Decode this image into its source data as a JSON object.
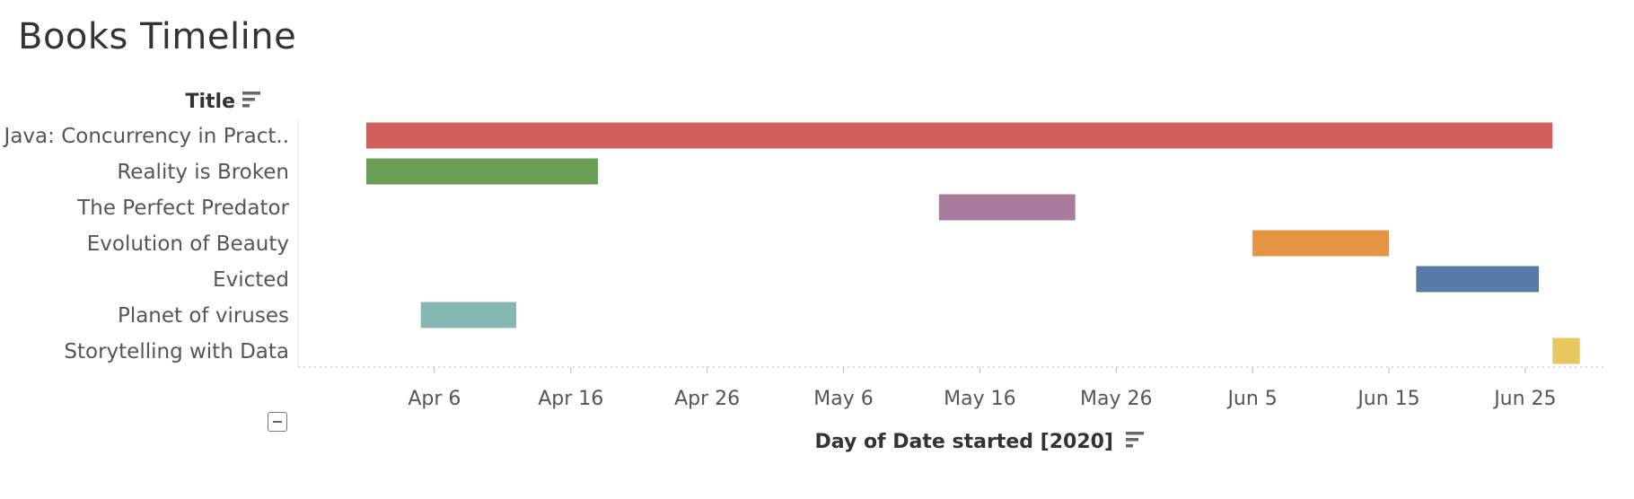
{
  "title": "Books Timeline",
  "y_field_label": "Title",
  "x_field_label": "Day of Date started [2020]",
  "icons": {
    "y_sort": "sort-descending-icon",
    "x_sort": "sort-descending-icon",
    "collapse": "collapse-minus-icon"
  },
  "chart_data": {
    "type": "gantt",
    "title": "Books Timeline",
    "xlabel": "Day of Date started [2020]",
    "ylabel": "Title",
    "x_ticks": [
      "Apr 6",
      "Apr 16",
      "Apr 26",
      "May 6",
      "May 16",
      "May 26",
      "Jun 5",
      "Jun 15",
      "Jun 25"
    ],
    "xlim": [
      "2020-03-27",
      "2020-07-01"
    ],
    "grid": false,
    "bars": [
      {
        "label": "Java: Concurrency in Pract..",
        "start": "2020-04-01",
        "end": "2020-06-27",
        "color": "#d35f5c"
      },
      {
        "label": "Reality is Broken",
        "start": "2020-04-01",
        "end": "2020-04-18",
        "color": "#6b9f58"
      },
      {
        "label": "The Perfect Predator",
        "start": "2020-05-13",
        "end": "2020-05-23",
        "color": "#a97b9f"
      },
      {
        "label": "Evolution of Beauty",
        "start": "2020-06-05",
        "end": "2020-06-15",
        "color": "#e59443"
      },
      {
        "label": "Evicted",
        "start": "2020-06-17",
        "end": "2020-06-26",
        "color": "#577aa6"
      },
      {
        "label": "Planet of viruses",
        "start": "2020-04-05",
        "end": "2020-04-12",
        "color": "#86b7b2"
      },
      {
        "label": "Storytelling with Data",
        "start": "2020-06-27",
        "end": "2020-06-29",
        "color": "#e8c75e"
      }
    ]
  }
}
